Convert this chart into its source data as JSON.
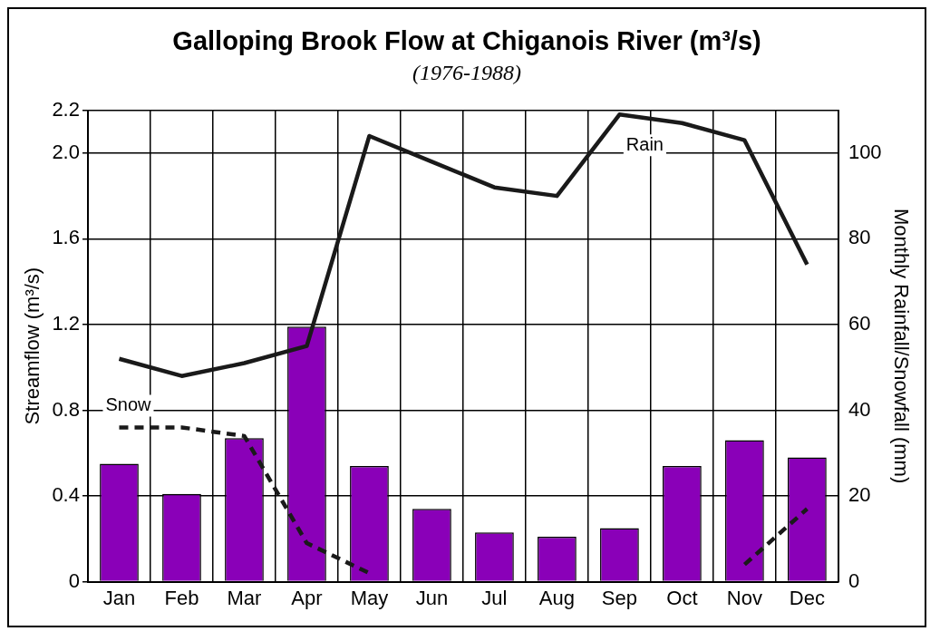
{
  "chart_data": {
    "type": "bar",
    "title": "Galloping Brook Flow at Chiganois River (m³/s)",
    "subtitle": "(1976-1988)",
    "ylabel": "Streamflow (m³/s)",
    "y2label": "Monthly Rainfall/Snowfall (mm)",
    "categories": [
      "Jan",
      "Feb",
      "Mar",
      "Apr",
      "May",
      "Jun",
      "Jul",
      "Aug",
      "Sep",
      "Oct",
      "Nov",
      "Dec"
    ],
    "series": [
      {
        "color": "#8a00b8",
        "values": [
          0.55,
          0.41,
          0.67,
          1.19,
          0.54,
          0.34,
          0.23,
          0.21,
          0.25,
          0.54,
          0.66,
          0.58
        ]
      },
      {
        "type": "line",
        "name": "Rain",
        "axis": "y2",
        "color": "#1a1a1a",
        "line_style": "solid",
        "values": [
          52,
          48,
          51,
          55,
          104,
          98,
          92,
          90,
          109,
          107,
          103,
          74
        ]
      },
      {
        "type": "line",
        "name": "Snow",
        "axis": "y2",
        "color": "#1a1a1a",
        "line_style": "dashed",
        "values": [
          36,
          36,
          34,
          9,
          2,
          null,
          null,
          null,
          null,
          null,
          4,
          17
        ]
      }
    ],
    "ylim": [
      0,
      2.2
    ],
    "yticks": [
      0,
      0.4,
      0.8,
      1.2,
      1.6,
      {
        "value": 2.0,
        "label": "2.0"
      },
      2.2
    ],
    "y2lim": [
      0,
      110
    ],
    "y2ticks": [
      0,
      20,
      40,
      60,
      80,
      100
    ],
    "grid": true,
    "marker": "none"
  }
}
